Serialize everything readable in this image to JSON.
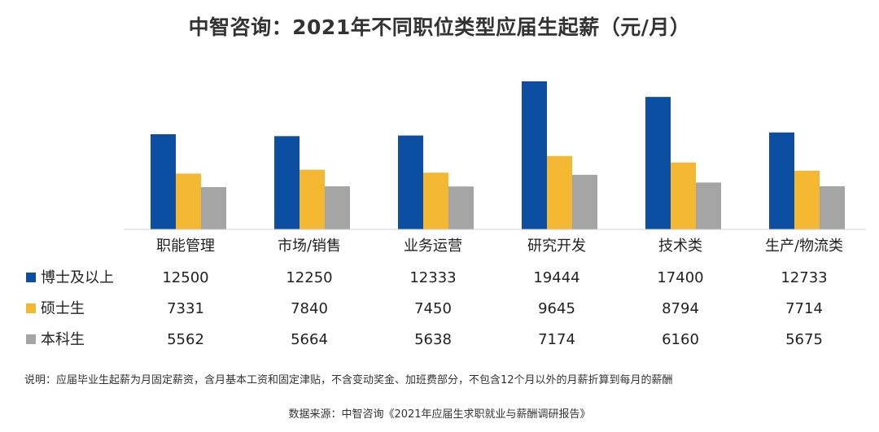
{
  "title": "中智咨询：2021年不同职位类型应届生起薪（元/月）",
  "note": "说明：应届毕业生起薪为月固定薪资，含月基本工资和固定津贴，不含变动奖金、加班费部分，不包含12个月以外的月薪折算到每月的薪酬",
  "source": "数据来源：中智咨询《2021年应届生求职就业与薪酬调研报告》",
  "chart_data": {
    "type": "bar",
    "title": "中智咨询：2021年不同职位类型应届生起薪（元/月）",
    "xlabel": "",
    "ylabel": "",
    "categories": [
      "职能管理",
      "市场/销售",
      "业务运营",
      "研究开发",
      "技术类",
      "生产/物流类"
    ],
    "series": [
      {
        "name": "博士及以上",
        "color": "#0c4ea2",
        "values": [
          12500,
          12250,
          12333,
          19444,
          17400,
          12733
        ]
      },
      {
        "name": "硕士生",
        "color": "#f4b731",
        "values": [
          7331,
          7840,
          7450,
          9645,
          8794,
          7714
        ]
      },
      {
        "name": "本科生",
        "color": "#a5a5a5",
        "values": [
          5562,
          5664,
          5638,
          7174,
          6160,
          5675
        ]
      }
    ],
    "ylim": [
      0,
      20000
    ],
    "grid": false,
    "legend": "data-table-left"
  }
}
